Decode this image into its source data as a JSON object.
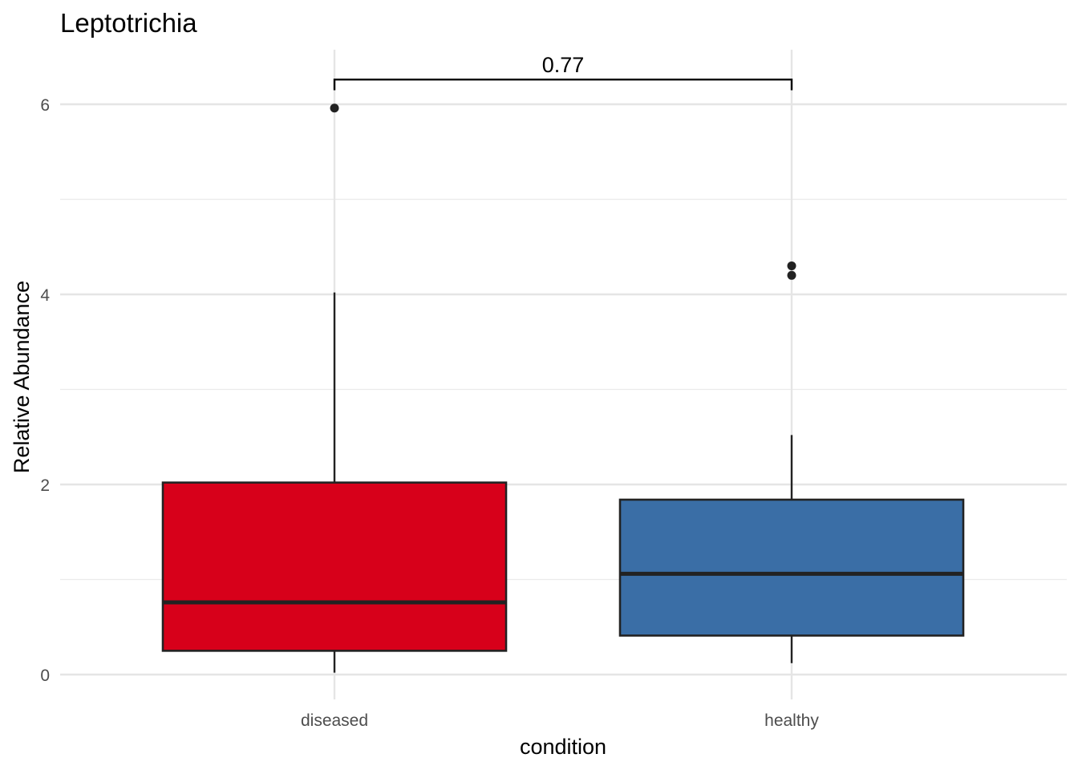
{
  "chart_data": {
    "type": "boxplot",
    "title": "Leptotrichia",
    "xlabel": "condition",
    "ylabel": "Relative Abundance",
    "ylim": [
      -0.25,
      6.55
    ],
    "y_ticks": [
      0,
      2,
      4,
      6
    ],
    "y_minor_ticks": [
      1,
      3,
      5
    ],
    "grid": true,
    "categories": [
      "diseased",
      "healthy"
    ],
    "boxes": [
      {
        "category": "diseased",
        "color": "#d7001a",
        "q1": 0.25,
        "median": 0.76,
        "q3": 2.02,
        "whisker_low": 0.02,
        "whisker_high": 4.02,
        "outliers": [
          5.96
        ]
      },
      {
        "category": "healthy",
        "color": "#3a6ea6",
        "q1": 0.41,
        "median": 1.06,
        "q3": 1.84,
        "whisker_low": 0.12,
        "whisker_high": 2.52,
        "outliers": [
          4.3,
          4.2
        ]
      }
    ],
    "annotation": {
      "label": "0.77",
      "from": "diseased",
      "to": "healthy",
      "y": 6.26,
      "tip_y": 6.08
    }
  }
}
